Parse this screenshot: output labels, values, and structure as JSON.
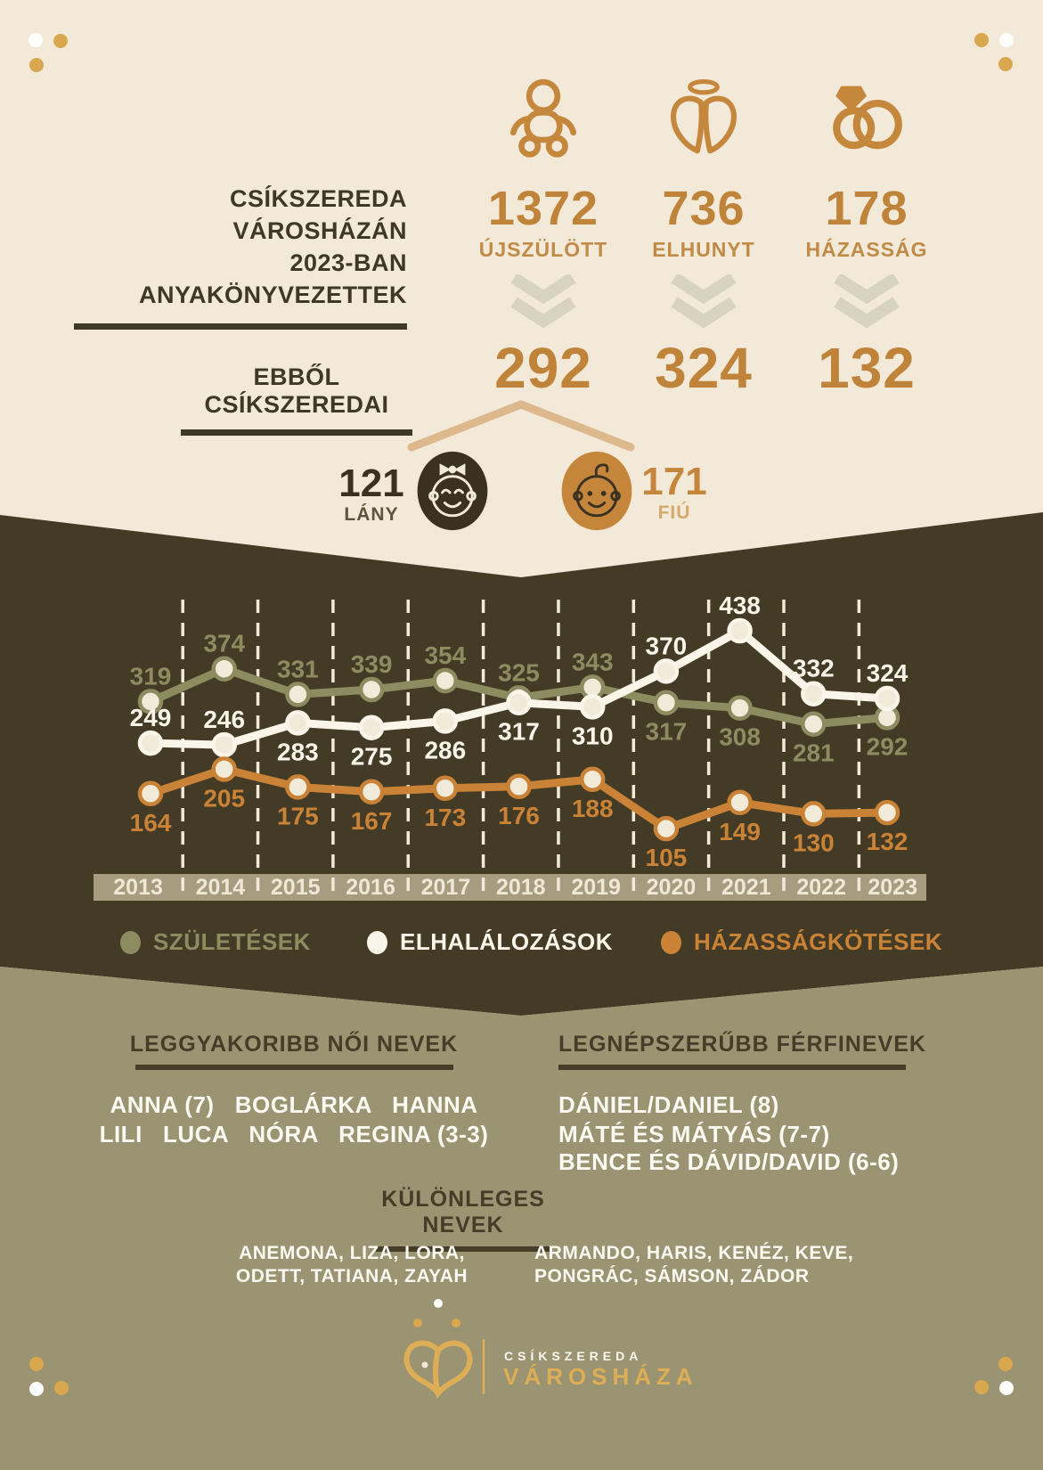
{
  "header": {
    "title_line1": "CSÍKSZEREDA VÁROSHÁZÁN",
    "title_line2": "2023-BAN ANYAKÖNYVEZETTEK",
    "subtitle": "EBBŐL CSÍKSZEREDAI"
  },
  "registered": {
    "items": [
      {
        "icon": "baby-icon",
        "value": "1372",
        "label": "ÚJSZÜLÖTT",
        "local": "292"
      },
      {
        "icon": "angel-wings-icon",
        "value": "736",
        "label": "ELHUNYT",
        "local": "324"
      },
      {
        "icon": "wedding-rings-icon",
        "value": "178",
        "label": "HÁZASSÁG",
        "local": "132"
      }
    ]
  },
  "gender_split": {
    "girls": {
      "value": "121",
      "label": "LÁNY"
    },
    "boys": {
      "value": "171",
      "label": "FIÚ"
    }
  },
  "chart_data": {
    "type": "line",
    "x": [
      2013,
      2014,
      2015,
      2016,
      2017,
      2018,
      2019,
      2020,
      2021,
      2022,
      2023
    ],
    "series": [
      {
        "name": "SZÜLETÉSEK",
        "color": "#8d8b60",
        "values": [
          319,
          374,
          331,
          339,
          354,
          325,
          343,
          317,
          308,
          281,
          292
        ],
        "label_positions": [
          "above",
          "above",
          "above",
          "above",
          "above",
          "above",
          "above",
          "below",
          "below",
          "below",
          "below"
        ]
      },
      {
        "name": "ELHALÁLOZÁSOK",
        "color": "#faf5e8",
        "values": [
          249,
          246,
          283,
          275,
          286,
          317,
          310,
          370,
          438,
          332,
          324
        ],
        "label_positions": [
          "above",
          "above",
          "below",
          "below",
          "below",
          "below",
          "below",
          "above",
          "above",
          "above",
          "above"
        ]
      },
      {
        "name": "HÁZASSÁGKÖTÉSEK",
        "color": "#ca8336",
        "values": [
          164,
          205,
          175,
          167,
          173,
          176,
          188,
          105,
          149,
          130,
          132
        ],
        "label_positions": [
          "below",
          "below",
          "below",
          "below",
          "below",
          "below",
          "below",
          "below",
          "below",
          "below",
          "below"
        ]
      }
    ],
    "ylim": [
      105,
      438
    ],
    "grid": "dashed-vertical-separators",
    "legend_position": "bottom"
  },
  "names": {
    "female": {
      "heading": "LEGGYAKORIBB NŐI NEVEK",
      "line1": "ANNA (7)   BOGLÁRKA   HANNA",
      "line2": "LILI   LUCA   NÓRA   REGINA (3-3)"
    },
    "male": {
      "heading": "LEGNÉPSZERŰBB FÉRFINEVEK",
      "line1": "DÁNIEL/DANIEL (8)",
      "line2": "MÁTÉ ÉS MÁTYÁS (7-7)",
      "line3": "BENCE ÉS DÁVID/DAVID (6-6)"
    },
    "special": {
      "heading": "KÜLÖNLEGES NEVEK",
      "female_line1": "ANEMONA, LIZA, LORA,",
      "female_line2": "ODETT, TATIANA, ZAYAH",
      "male_line1": "ARMANDO, HARIS, KENÉZ, KEVE,",
      "male_line2": "PONGRÁC, SÁMSON, ZÁDOR"
    }
  },
  "footer": {
    "org_line1": "CSÍKSZEREDA",
    "org_line2": "VÁROSHÁZA"
  },
  "colors": {
    "cream_background": "#f2e9d9",
    "dark_section": "#443b27",
    "olive_section": "#9b9472",
    "accent_orange": "#bf8339",
    "dark_text": "#3e3826",
    "births_green": "#8d8b60",
    "deaths_white": "#faf5e8",
    "marriages_orange": "#ca8336",
    "year_band": "#a89c80",
    "chevron_gray": "#d8d3c1",
    "branch_tan": "#ddb88c",
    "logo_gold": "#ddae55"
  }
}
